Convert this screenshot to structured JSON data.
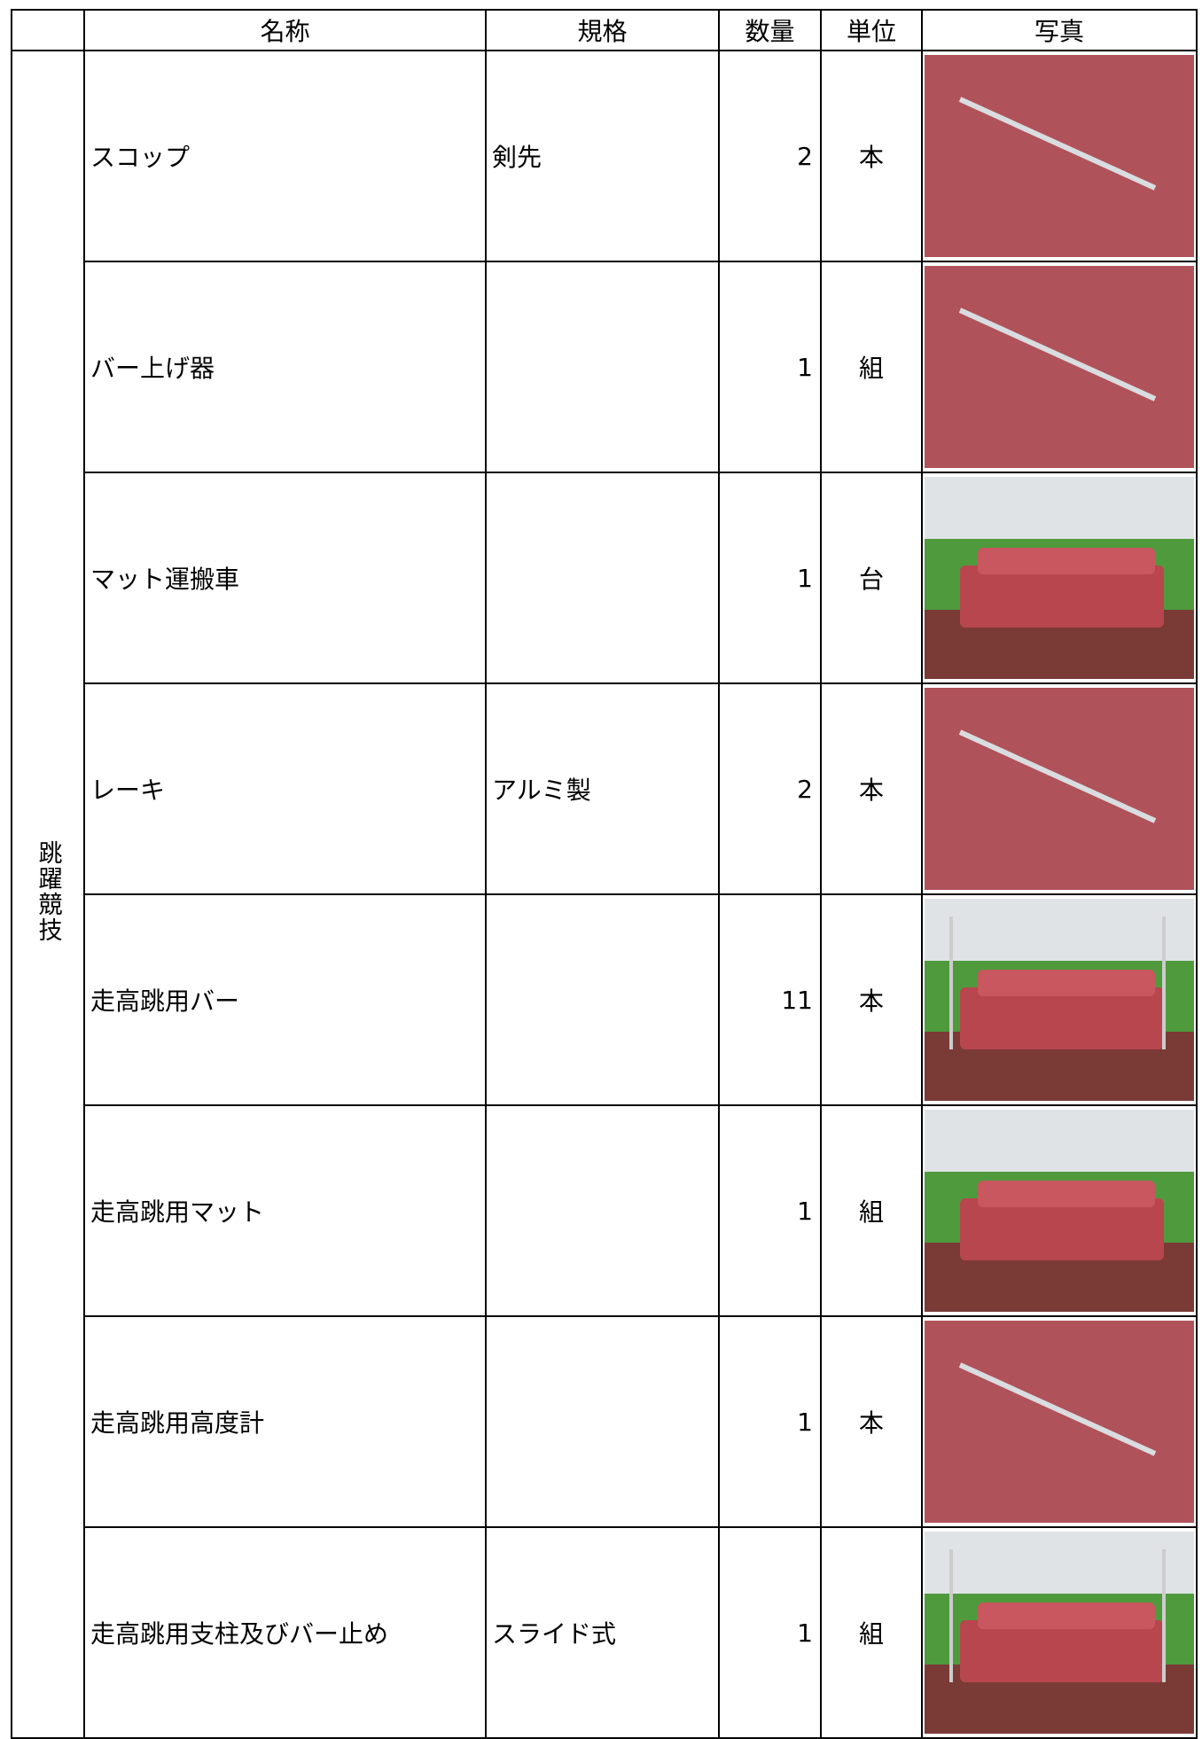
{
  "table": {
    "header": [
      "名称",
      "規格",
      "数量",
      "単位",
      "写真"
    ],
    "category": "跳躍競技",
    "rows": [
      {
        "name": "スコップ",
        "spec": "剣先",
        "quantity": 2,
        "unit": "本"
      },
      {
        "name": "バー上げ器",
        "quantity": 1,
        "unit": "組"
      },
      {
        "name": "マット運搬車",
        "quantity": 1,
        "unit": "台"
      },
      {
        "name": "レーキ",
        "spec": "アルミ製",
        "quantity": 2,
        "unit": "本"
      },
      {
        "name": "走高跳用バー",
        "quantity": 11,
        "unit": "本"
      },
      {
        "name": "走高跳用マット",
        "quantity": 1,
        "unit": "組"
      },
      {
        "name": "走高跳用高度計",
        "quantity": 1,
        "unit": "本"
      },
      {
        "name": "走高跳用支柱及びバー止め",
        "spec": "スライド式",
        "quantity": 1,
        "unit": "組"
      }
    ]
  }
}
